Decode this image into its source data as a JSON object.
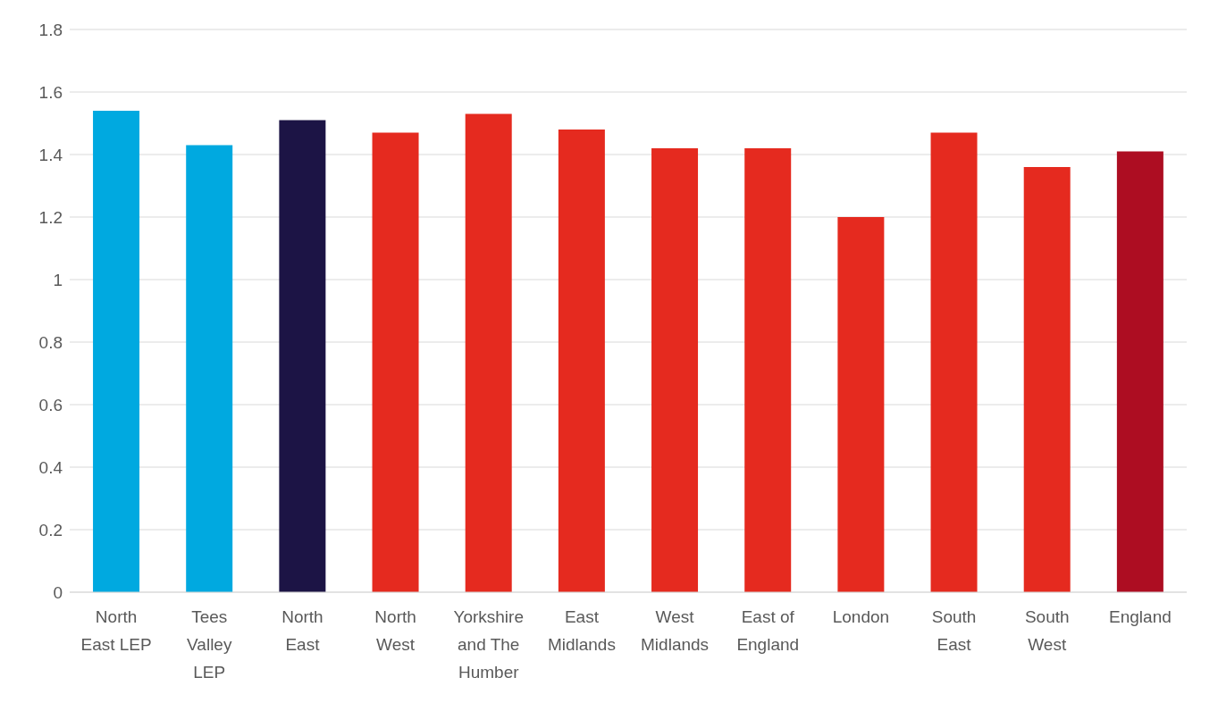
{
  "chart_data": {
    "type": "bar",
    "categories": [
      "North East LEP",
      "Tees Valley LEP",
      "North East",
      "North West",
      "Yorkshire and The Humber",
      "East Midlands",
      "West Midlands",
      "East of England",
      "London",
      "South East",
      "South West",
      "England"
    ],
    "values": [
      1.54,
      1.43,
      1.51,
      1.47,
      1.53,
      1.48,
      1.42,
      1.42,
      1.2,
      1.47,
      1.36,
      1.41
    ],
    "colors": [
      "#00a9e0",
      "#00a9e0",
      "#1c1445",
      "#e52a1f",
      "#e52a1f",
      "#e52a1f",
      "#e52a1f",
      "#e52a1f",
      "#e52a1f",
      "#e52a1f",
      "#e52a1f",
      "#ad0d22"
    ],
    "ylim": [
      0,
      1.8
    ],
    "yticks": [
      0,
      0.2,
      0.4,
      0.6,
      0.8,
      1,
      1.2,
      1.4,
      1.6,
      1.8
    ],
    "grid": "y"
  }
}
